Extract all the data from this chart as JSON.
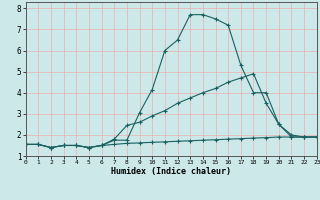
{
  "xlabel": "Humidex (Indice chaleur)",
  "background_color": "#cce8e8",
  "grid_color": "#e8b0b0",
  "line_color": "#1a6060",
  "xlim": [
    0,
    23
  ],
  "ylim": [
    1,
    8.3
  ],
  "xticks": [
    0,
    1,
    2,
    3,
    4,
    5,
    6,
    7,
    8,
    9,
    10,
    11,
    12,
    13,
    14,
    15,
    16,
    17,
    18,
    19,
    20,
    21,
    22,
    23
  ],
  "yticks": [
    1,
    2,
    3,
    4,
    5,
    6,
    7,
    8
  ],
  "series": [
    {
      "x": [
        0,
        1,
        2,
        3,
        4,
        5,
        6,
        7,
        8,
        9,
        10,
        11,
        12,
        13,
        14,
        15,
        16,
        17,
        18,
        19,
        20,
        21,
        22,
        23
      ],
      "y": [
        1.55,
        1.55,
        1.4,
        1.5,
        1.5,
        1.4,
        1.5,
        1.75,
        1.75,
        3.05,
        4.15,
        6.0,
        6.5,
        7.7,
        7.7,
        7.5,
        7.2,
        5.3,
        4.0,
        4.0,
        2.5,
        1.9,
        1.9,
        1.9
      ]
    },
    {
      "x": [
        0,
        1,
        2,
        3,
        4,
        5,
        6,
        7,
        8,
        9,
        10,
        11,
        12,
        13,
        14,
        15,
        16,
        17,
        18,
        19,
        20,
        21,
        22,
        23
      ],
      "y": [
        1.55,
        1.55,
        1.4,
        1.5,
        1.5,
        1.4,
        1.5,
        1.8,
        2.45,
        2.6,
        2.9,
        3.15,
        3.5,
        3.75,
        4.0,
        4.2,
        4.5,
        4.7,
        4.9,
        3.5,
        2.5,
        2.0,
        1.9,
        1.9
      ]
    },
    {
      "x": [
        0,
        1,
        2,
        3,
        4,
        5,
        6,
        7,
        8,
        9,
        10,
        11,
        12,
        13,
        14,
        15,
        16,
        17,
        18,
        19,
        20,
        21,
        22,
        23
      ],
      "y": [
        1.55,
        1.55,
        1.4,
        1.5,
        1.5,
        1.4,
        1.5,
        1.55,
        1.6,
        1.62,
        1.65,
        1.67,
        1.7,
        1.72,
        1.75,
        1.77,
        1.8,
        1.82,
        1.85,
        1.87,
        1.9,
        1.9,
        1.9,
        1.9
      ]
    }
  ]
}
